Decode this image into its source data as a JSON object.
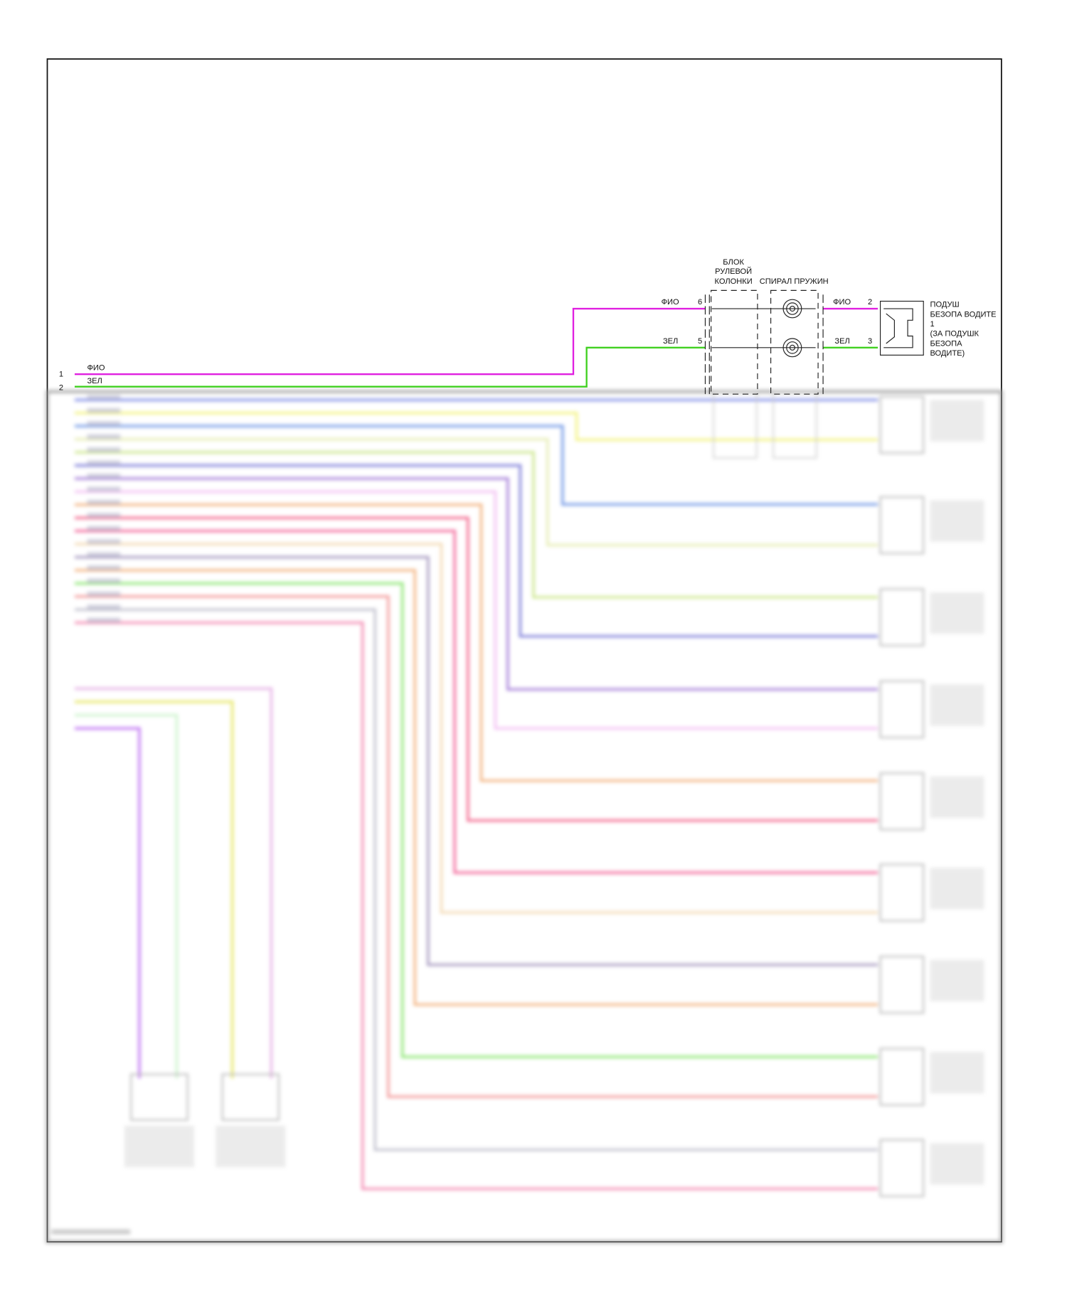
{
  "diagram": {
    "wires_top": [
      {
        "pin": "1",
        "color_label": "ФИО",
        "color": "#e020e0"
      },
      {
        "pin": "2",
        "color_label": "ЗЕЛ",
        "color": "#40d020"
      }
    ],
    "steering_column_block": {
      "label_lines": [
        "БЛОК",
        "РУЛЕВОЙ",
        "КОЛОНКИ"
      ]
    },
    "clock_spring": {
      "label": "СПИРАЛ ПРУЖИН"
    },
    "left_pins": [
      {
        "pin": "6",
        "color_label": "ФИО"
      },
      {
        "pin": "5",
        "color_label": "ЗЕЛ"
      }
    ],
    "right_pins": [
      {
        "pin": "2",
        "color_label": "ФИО"
      },
      {
        "pin": "3",
        "color_label": "ЗЕЛ"
      }
    ],
    "driver_airbag": {
      "label_lines": [
        "ПОДУШ",
        "БЕЗОПА ВОДИТЕ",
        "1",
        "(ЗА ПОДУШК",
        "БЕЗОПА",
        "ВОДИТЕ)"
      ]
    },
    "blurred_wire_colors": [
      "#6070e0",
      "#f0f060",
      "#5080e0",
      "#e0e8a0",
      "#c0e070",
      "#6060d0",
      "#9060d0",
      "#f0b0f0",
      "#f0a060",
      "#f04070",
      "#f04080",
      "#f0d0a0",
      "#9080b0",
      "#f0a060",
      "#70e050",
      "#f08080",
      "#b0b0c0",
      "#f070a0"
    ],
    "blurred_lower_wire_colors": [
      "#e0a0e0",
      "#e0e040",
      "#c0f0c0",
      "#b050f0"
    ]
  }
}
